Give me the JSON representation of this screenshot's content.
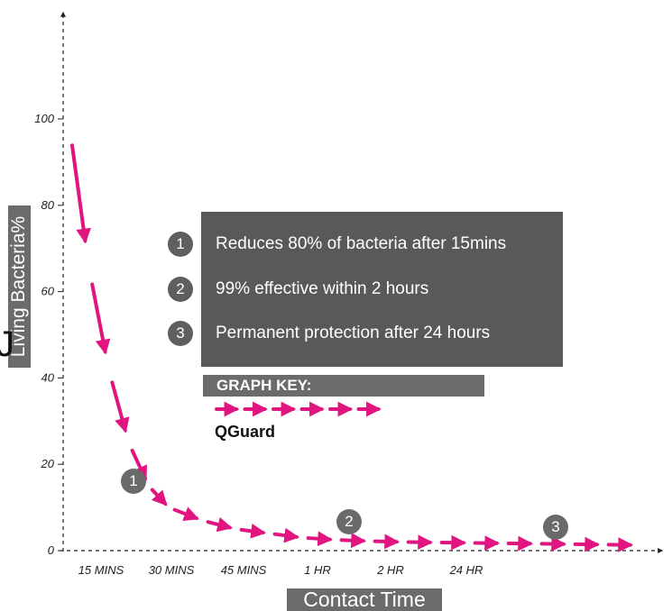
{
  "chart_data": {
    "type": "line",
    "title": "",
    "ylabel": "Living Bacteria%",
    "xlabel": "Contact Time",
    "categories": [
      "15 MINS",
      "30 MINS",
      "45 MINS",
      "1 HR",
      "2 HR",
      "24 HR"
    ],
    "ylim": [
      0,
      100
    ],
    "yticks": [
      0,
      20,
      40,
      60,
      80,
      100
    ],
    "legend": {
      "title": "GRAPH KEY:",
      "placement": "center",
      "entries": [
        "QGuard"
      ]
    },
    "series": [
      {
        "name": "QGuard",
        "color": "#e0157f",
        "points": [
          {
            "x": 0.0,
            "y": 100
          },
          {
            "x": 0.3,
            "y": 66
          },
          {
            "x": 0.6,
            "y": 42
          },
          {
            "x": 0.9,
            "y": 25
          },
          {
            "x": 1.2,
            "y": 15
          },
          {
            "x": 1.5,
            "y": 10
          },
          {
            "x": 2.0,
            "y": 7
          },
          {
            "x": 2.5,
            "y": 5
          },
          {
            "x": 3.0,
            "y": 4
          },
          {
            "x": 3.5,
            "y": 3
          },
          {
            "x": 4.0,
            "y": 2.5
          },
          {
            "x": 4.5,
            "y": 2.2
          },
          {
            "x": 5.0,
            "y": 2
          },
          {
            "x": 5.5,
            "y": 1.9
          },
          {
            "x": 6.0,
            "y": 1.8
          },
          {
            "x": 6.5,
            "y": 1.7
          },
          {
            "x": 7.0,
            "y": 1.6
          },
          {
            "x": 7.5,
            "y": 1.5
          },
          {
            "x": 8.0,
            "y": 1.4
          },
          {
            "x": 8.5,
            "y": 1.3
          }
        ]
      }
    ],
    "annotations": [
      {
        "number": "1",
        "text": "Reduces 80% of bacteria after 15mins"
      },
      {
        "number": "2",
        "text": "99% effective within 2 hours"
      },
      {
        "number": "3",
        "text": "Permanent protection after 24 hours"
      }
    ]
  },
  "ui": {
    "ylabel": "Living Bacteria%",
    "xlabel": "Contact Time",
    "legend_title": "GRAPH KEY:",
    "legend_series": "QGuard",
    "markers": [
      "1",
      "2",
      "3"
    ]
  }
}
